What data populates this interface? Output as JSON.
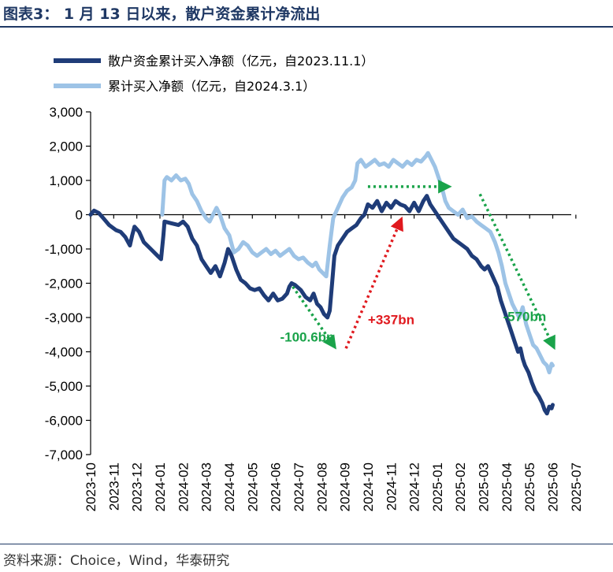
{
  "header": {
    "title": "图表3：  1 月 13 日以来，散户资金累计净流出"
  },
  "footer": {
    "source": "资料来源：Choice，Wind，华泰研究"
  },
  "colors": {
    "dark_series": "#1f3c78",
    "light_series": "#9dc3e6",
    "green": "#1aa34a",
    "red": "#e0191e",
    "axis": "#000000"
  },
  "chart_data": {
    "type": "line",
    "title": "",
    "ylim": [
      -7000,
      3000
    ],
    "yticks": [
      3000,
      2000,
      1000,
      0,
      -1000,
      -2000,
      -3000,
      -4000,
      -5000,
      -6000,
      -7000
    ],
    "ytick_labels": [
      "3,000",
      "2,000",
      "1,000",
      "0",
      "-1,000",
      "-2,000",
      "-3,000",
      "-4,000",
      "-5,000",
      "-6,000",
      "-7,000"
    ],
    "categories": [
      "2023-10",
      "2023-11",
      "2023-12",
      "2024-01",
      "2024-02",
      "2024-03",
      "2024-04",
      "2024-05",
      "2024-06",
      "2024-07",
      "2024-08",
      "2024-09",
      "2024-10",
      "2024-11",
      "2024-12",
      "2025-01",
      "2025-02",
      "2025-03",
      "2025-04",
      "2025-05",
      "2025-06",
      "2025-07"
    ],
    "series": [
      {
        "name": "散户资金累计买入净额（亿元，自2023.11.1）",
        "color": "#1f3c78",
        "points": [
          [
            0.0,
            0
          ],
          [
            0.15,
            120
          ],
          [
            0.35,
            50
          ],
          [
            0.55,
            -100
          ],
          [
            0.8,
            -300
          ],
          [
            1.1,
            -450
          ],
          [
            1.3,
            -500
          ],
          [
            1.5,
            -650
          ],
          [
            1.7,
            -900
          ],
          [
            1.8,
            -600
          ],
          [
            1.9,
            -350
          ],
          [
            2.1,
            -500
          ],
          [
            2.3,
            -800
          ],
          [
            2.6,
            -1000
          ],
          [
            2.9,
            -1200
          ],
          [
            3.05,
            -1300
          ],
          [
            3.15,
            -600
          ],
          [
            3.2,
            -200
          ],
          [
            3.5,
            -250
          ],
          [
            3.8,
            -300
          ],
          [
            4.0,
            -200
          ],
          [
            4.2,
            -350
          ],
          [
            4.4,
            -700
          ],
          [
            4.6,
            -900
          ],
          [
            4.8,
            -1300
          ],
          [
            5.0,
            -1500
          ],
          [
            5.2,
            -1700
          ],
          [
            5.4,
            -1500
          ],
          [
            5.6,
            -1800
          ],
          [
            5.8,
            -1400
          ],
          [
            5.95,
            -1000
          ],
          [
            6.1,
            -1200
          ],
          [
            6.3,
            -1600
          ],
          [
            6.5,
            -1900
          ],
          [
            6.7,
            -2000
          ],
          [
            6.9,
            -2150
          ],
          [
            7.1,
            -2200
          ],
          [
            7.3,
            -2150
          ],
          [
            7.5,
            -2350
          ],
          [
            7.7,
            -2500
          ],
          [
            7.9,
            -2300
          ],
          [
            8.1,
            -2500
          ],
          [
            8.3,
            -2450
          ],
          [
            8.5,
            -2300
          ],
          [
            8.6,
            -2100
          ],
          [
            8.7,
            -2000
          ],
          [
            8.85,
            -2050
          ],
          [
            9.1,
            -2200
          ],
          [
            9.3,
            -2400
          ],
          [
            9.5,
            -2500
          ],
          [
            9.65,
            -2300
          ],
          [
            9.8,
            -2600
          ],
          [
            9.95,
            -2700
          ],
          [
            10.1,
            -2900
          ],
          [
            10.25,
            -3000
          ],
          [
            10.35,
            -2800
          ],
          [
            10.45,
            -2000
          ],
          [
            10.55,
            -1200
          ],
          [
            10.7,
            -900
          ],
          [
            10.9,
            -700
          ],
          [
            11.1,
            -500
          ],
          [
            11.3,
            -400
          ],
          [
            11.5,
            -300
          ],
          [
            11.7,
            -100
          ],
          [
            11.85,
            0
          ],
          [
            12.0,
            300
          ],
          [
            12.2,
            200
          ],
          [
            12.4,
            400
          ],
          [
            12.6,
            100
          ],
          [
            12.8,
            350
          ],
          [
            13.0,
            200
          ],
          [
            13.2,
            400
          ],
          [
            13.4,
            300
          ],
          [
            13.6,
            250
          ],
          [
            13.8,
            100
          ],
          [
            14.0,
            350
          ],
          [
            14.2,
            100
          ],
          [
            14.4,
            400
          ],
          [
            14.55,
            550
          ],
          [
            14.7,
            300
          ],
          [
            14.9,
            100
          ],
          [
            15.1,
            -100
          ],
          [
            15.3,
            -300
          ],
          [
            15.5,
            -500
          ],
          [
            15.7,
            -700
          ],
          [
            15.9,
            -800
          ],
          [
            16.1,
            -900
          ],
          [
            16.3,
            -1000
          ],
          [
            16.5,
            -1200
          ],
          [
            16.7,
            -1300
          ],
          [
            16.9,
            -1500
          ],
          [
            17.05,
            -1600
          ],
          [
            17.2,
            -1500
          ],
          [
            17.4,
            -1800
          ],
          [
            17.6,
            -2100
          ],
          [
            17.75,
            -2500
          ],
          [
            17.9,
            -2800
          ],
          [
            18.05,
            -3100
          ],
          [
            18.2,
            -3400
          ],
          [
            18.35,
            -3700
          ],
          [
            18.5,
            -4000
          ],
          [
            18.6,
            -3900
          ],
          [
            18.7,
            -4200
          ],
          [
            18.8,
            -4400
          ],
          [
            18.95,
            -4600
          ],
          [
            19.1,
            -4900
          ],
          [
            19.25,
            -5150
          ],
          [
            19.4,
            -5300
          ],
          [
            19.55,
            -5500
          ],
          [
            19.65,
            -5700
          ],
          [
            19.75,
            -5800
          ],
          [
            19.85,
            -5600
          ],
          [
            19.95,
            -5650
          ],
          [
            20.0,
            -5550
          ]
        ]
      },
      {
        "name": "累计买入净额（亿元，自2024.3.1）",
        "color": "#9dc3e6",
        "points": [
          [
            3.1,
            0
          ],
          [
            3.2,
            1000
          ],
          [
            3.3,
            1100
          ],
          [
            3.5,
            1000
          ],
          [
            3.7,
            1150
          ],
          [
            3.9,
            1000
          ],
          [
            4.1,
            1050
          ],
          [
            4.25,
            900
          ],
          [
            4.4,
            600
          ],
          [
            4.6,
            400
          ],
          [
            4.8,
            100
          ],
          [
            5.0,
            -100
          ],
          [
            5.15,
            -200
          ],
          [
            5.3,
            0
          ],
          [
            5.45,
            200
          ],
          [
            5.6,
            0
          ],
          [
            5.8,
            -400
          ],
          [
            6.0,
            -600
          ],
          [
            6.2,
            -1100
          ],
          [
            6.4,
            -1000
          ],
          [
            6.6,
            -800
          ],
          [
            6.8,
            -900
          ],
          [
            7.0,
            -1100
          ],
          [
            7.2,
            -1200
          ],
          [
            7.4,
            -1100
          ],
          [
            7.6,
            -1000
          ],
          [
            7.8,
            -1150
          ],
          [
            8.0,
            -1050
          ],
          [
            8.2,
            -1200
          ],
          [
            8.4,
            -1100
          ],
          [
            8.6,
            -1000
          ],
          [
            8.8,
            -1200
          ],
          [
            9.0,
            -1300
          ],
          [
            9.2,
            -1250
          ],
          [
            9.4,
            -1400
          ],
          [
            9.6,
            -1500
          ],
          [
            9.75,
            -1400
          ],
          [
            9.9,
            -1600
          ],
          [
            10.05,
            -1700
          ],
          [
            10.2,
            -1800
          ],
          [
            10.35,
            -900
          ],
          [
            10.5,
            -100
          ],
          [
            10.7,
            200
          ],
          [
            10.9,
            500
          ],
          [
            11.1,
            700
          ],
          [
            11.3,
            800
          ],
          [
            11.45,
            1000
          ],
          [
            11.55,
            1500
          ],
          [
            11.7,
            1600
          ],
          [
            11.9,
            1400
          ],
          [
            12.1,
            1500
          ],
          [
            12.3,
            1600
          ],
          [
            12.5,
            1450
          ],
          [
            12.7,
            1500
          ],
          [
            12.9,
            1400
          ],
          [
            13.1,
            1600
          ],
          [
            13.3,
            1500
          ],
          [
            13.5,
            1400
          ],
          [
            13.7,
            1550
          ],
          [
            13.9,
            1450
          ],
          [
            14.1,
            1600
          ],
          [
            14.3,
            1550
          ],
          [
            14.5,
            1700
          ],
          [
            14.6,
            1800
          ],
          [
            14.75,
            1600
          ],
          [
            14.9,
            1400
          ],
          [
            15.05,
            1100
          ],
          [
            15.2,
            800
          ],
          [
            15.35,
            400
          ],
          [
            15.5,
            200
          ],
          [
            15.7,
            100
          ],
          [
            15.9,
            0
          ],
          [
            16.1,
            150
          ],
          [
            16.3,
            -100
          ],
          [
            16.5,
            -50
          ],
          [
            16.7,
            -200
          ],
          [
            16.9,
            -300
          ],
          [
            17.1,
            -400
          ],
          [
            17.3,
            -500
          ],
          [
            17.5,
            -800
          ],
          [
            17.65,
            -1100
          ],
          [
            17.8,
            -1500
          ],
          [
            17.95,
            -2000
          ],
          [
            18.1,
            -2300
          ],
          [
            18.25,
            -2600
          ],
          [
            18.4,
            -2800
          ],
          [
            18.55,
            -3000
          ],
          [
            18.7,
            -2700
          ],
          [
            18.85,
            -3200
          ],
          [
            19.0,
            -3500
          ],
          [
            19.15,
            -3800
          ],
          [
            19.3,
            -3900
          ],
          [
            19.45,
            -4100
          ],
          [
            19.6,
            -4300
          ],
          [
            19.75,
            -4400
          ],
          [
            19.85,
            -4600
          ],
          [
            19.95,
            -4350
          ],
          [
            20.0,
            -4400
          ]
        ]
      }
    ],
    "annotations": [
      {
        "text": "-100.6bn",
        "color": "#1aa34a",
        "type": "text",
        "x": 8.2,
        "y": -3700
      },
      {
        "text": "+337bn",
        "color": "#e0191e",
        "type": "text",
        "x": 12.0,
        "y": -3200
      },
      {
        "text": "-570bn",
        "color": "#1aa34a",
        "type": "text",
        "x": 17.85,
        "y": -3100
      }
    ],
    "arrows": [
      {
        "color": "#1aa34a",
        "from": [
          8.75,
          -2100
        ],
        "to": [
          10.5,
          -3800
        ]
      },
      {
        "color": "#e0191e",
        "from": [
          11.05,
          -3900
        ],
        "to": [
          13.4,
          -200
        ]
      },
      {
        "color": "#1aa34a",
        "from": [
          12.0,
          820
        ],
        "to": [
          15.4,
          820
        ]
      },
      {
        "color": "#1aa34a",
        "from": [
          16.85,
          600
        ],
        "to": [
          20.0,
          -3800
        ]
      }
    ]
  }
}
